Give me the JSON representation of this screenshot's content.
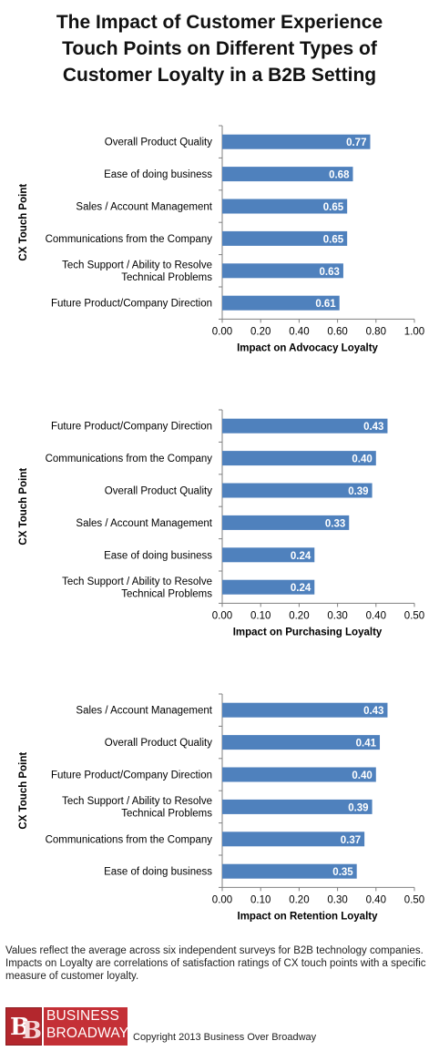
{
  "title_lines": [
    "The Impact of Customer Experience",
    "Touch Points on Different Types of",
    "Customer Loyalty in a B2B Setting"
  ],
  "colors": {
    "bar": "#4f81bd",
    "axis": "#808080",
    "label_text": "#ffffff"
  },
  "chart_data": [
    {
      "type": "bar",
      "orientation": "horizontal",
      "ylabel": "CX Touch Point",
      "xlabel": "Impact on Advocacy Loyalty",
      "xlim": [
        0,
        1.0
      ],
      "ticks": [
        0,
        0.2,
        0.4,
        0.6,
        0.8,
        1.0
      ],
      "tick_labels": [
        "0.00",
        "0.20",
        "0.40",
        "0.60",
        "0.80",
        "1.00"
      ],
      "categories": [
        "Overall Product Quality",
        "Ease of doing business",
        "Sales / Account Management",
        "Communications from the Company",
        "Tech Support / Ability to Resolve\nTechnical Problems",
        "Future Product/Company Direction"
      ],
      "values": [
        0.77,
        0.68,
        0.65,
        0.65,
        0.63,
        0.61
      ],
      "value_labels": [
        "0.77",
        "0.68",
        "0.65",
        "0.65",
        "0.63",
        "0.61"
      ],
      "grid": false
    },
    {
      "type": "bar",
      "orientation": "horizontal",
      "ylabel": "CX Touch Point",
      "xlabel": "Impact on Purchasing Loyalty",
      "xlim": [
        0,
        0.5
      ],
      "ticks": [
        0,
        0.1,
        0.2,
        0.3,
        0.4,
        0.5
      ],
      "tick_labels": [
        "0.00",
        "0.10",
        "0.20",
        "0.30",
        "0.40",
        "0.50"
      ],
      "categories": [
        "Future Product/Company Direction",
        "Communications from the Company",
        "Overall Product Quality",
        "Sales / Account Management",
        "Ease of doing business",
        "Tech Support / Ability to Resolve\nTechnical Problems"
      ],
      "values": [
        0.43,
        0.4,
        0.39,
        0.33,
        0.24,
        0.24
      ],
      "value_labels": [
        "0.43",
        "0.40",
        "0.39",
        "0.33",
        "0.24",
        "0.24"
      ],
      "grid": false
    },
    {
      "type": "bar",
      "orientation": "horizontal",
      "ylabel": "CX Touch Point",
      "xlabel": "Impact on Retention Loyalty",
      "xlim": [
        0,
        0.5
      ],
      "ticks": [
        0,
        0.1,
        0.2,
        0.3,
        0.4,
        0.5
      ],
      "tick_labels": [
        "0.00",
        "0.10",
        "0.20",
        "0.30",
        "0.40",
        "0.50"
      ],
      "categories": [
        "Sales / Account Management",
        "Overall Product Quality",
        "Future Product/Company Direction",
        "Tech Support / Ability to Resolve\nTechnical Problems",
        "Communications from the Company",
        "Ease of doing business"
      ],
      "values": [
        0.43,
        0.41,
        0.4,
        0.39,
        0.37,
        0.35
      ],
      "value_labels": [
        "0.43",
        "0.41",
        "0.40",
        "0.39",
        "0.37",
        "0.35"
      ],
      "grid": false
    }
  ],
  "footnote": "Values reflect the average across six independent surveys for B2B technology companies. Impacts on Loyalty are correlations of satisfaction ratings of CX touch points with a specific measure of customer loyalty.",
  "logo": {
    "mark": "BB",
    "line1": "BUSINESS",
    "line2": "BROADWAY"
  },
  "copyright": "Copyright 2013 Business Over Broadway"
}
